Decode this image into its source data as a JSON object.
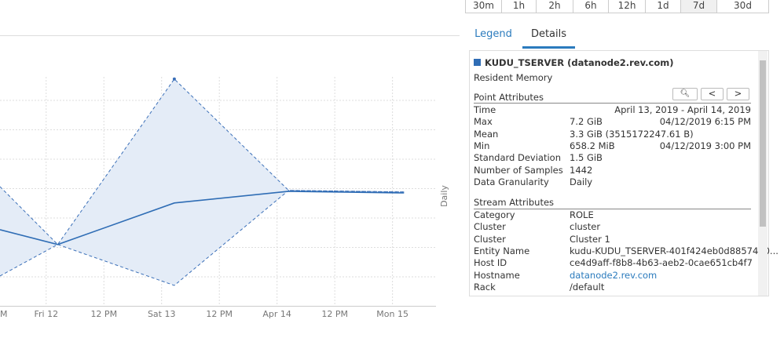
{
  "time_ranges": [
    "30m",
    "1h",
    "2h",
    "6h",
    "12h",
    "1d",
    "7d",
    "30d"
  ],
  "tabs": [
    "Legend",
    "Details"
  ],
  "chart_data": {
    "type": "line",
    "y_label": "Daily",
    "xlim": [
      11.6,
      15.37
    ],
    "ylim": [
      0,
      8.6
    ],
    "xticks": [
      {
        "value": 11.5,
        "label": "M"
      },
      {
        "value": 12,
        "label": "Fri 12"
      },
      {
        "value": 12.5,
        "label": "12 PM"
      },
      {
        "value": 13,
        "label": "Sat 13"
      },
      {
        "value": 13.5,
        "label": "12 PM"
      },
      {
        "value": 14,
        "label": "Apr 14"
      },
      {
        "value": 14.5,
        "label": "12 PM"
      },
      {
        "value": 15,
        "label": "Mon 15"
      }
    ],
    "x": [
      11.6,
      12.1,
      13.11,
      14.1,
      15.1
    ],
    "series": [
      {
        "color": "#3a6fb8",
        "dashed": true,
        "values": [
          3.79,
          1.95,
          7.21,
          3.67,
          3.62
        ]
      },
      {
        "color": "#3a6fb8",
        "dashed": true,
        "values": [
          0.95,
          1.95,
          0.65,
          3.67,
          3.62
        ]
      },
      {
        "color": "#2f6db5",
        "dashed": false,
        "values": [
          2.42,
          1.95,
          3.27,
          3.64,
          3.59
        ]
      }
    ],
    "band_color": "#e4ecf7"
  },
  "details": {
    "series_name": "KUDU_TSERVER (datanode2.rev.com)",
    "metric": "Resident Memory",
    "point_attributes_title": "Point Attributes",
    "point_attributes": [
      {
        "label": "Time",
        "time": "April 13, 2019 - April 14, 2019"
      },
      {
        "label": "Max",
        "value": "7.2 GiB",
        "time": "04/12/2019 6:15 PM"
      },
      {
        "label": "Mean",
        "value": "3.3 GiB (3515172247.61 B)"
      },
      {
        "label": "Min",
        "value": "658.2 MiB",
        "time": "04/12/2019 3:00 PM"
      },
      {
        "label": "Standard Deviation",
        "value": "1.5 GiB"
      },
      {
        "label": "Number of Samples",
        "value": "1442"
      },
      {
        "label": "Data Granularity",
        "value": "Daily"
      }
    ],
    "stream_attributes_title": "Stream Attributes",
    "stream_attributes": [
      {
        "label": "Category",
        "value": "ROLE"
      },
      {
        "label": "Cluster",
        "value": "cluster"
      },
      {
        "label": "Cluster",
        "value": "Cluster 1"
      },
      {
        "label": "Entity Name",
        "value": "kudu-KUDU_TSERVER-401f424eb0d8857460..."
      },
      {
        "label": "Host ID",
        "value": "ce4d9aff-f8b8-4b63-aeb2-0cae651cb4f7"
      },
      {
        "label": "Hostname",
        "value": "datanode2.rev.com",
        "link": true
      },
      {
        "label": "Rack",
        "value": "/default"
      }
    ]
  }
}
